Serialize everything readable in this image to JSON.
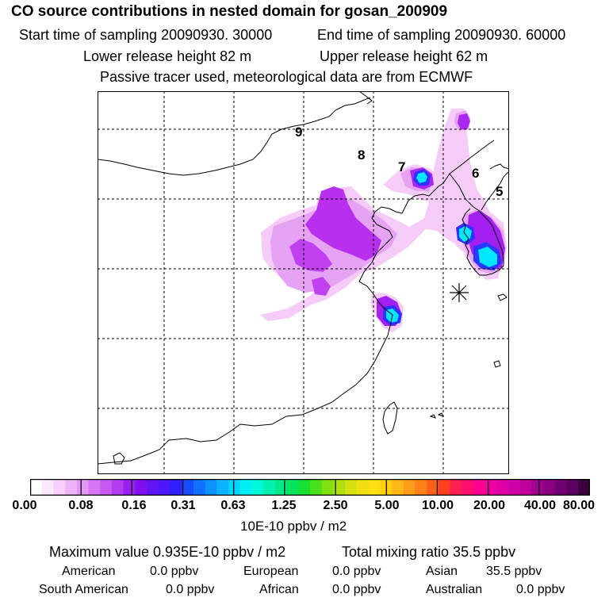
{
  "header": {
    "title": "CO  source contributions in nested domain for gosan_200909",
    "start_time": "Start time of sampling 20090930. 30000",
    "end_time": "End time of sampling 20090930. 60000",
    "lower_height": "Lower release height   82 m",
    "upper_height": "Upper release height   62 m",
    "tracer_note": "Passive tracer used, meteorological data are from ECMWF"
  },
  "map": {
    "trajectory_labels": [
      "9",
      "8",
      "7",
      "6",
      "5"
    ],
    "receptor_marker": "asterisk-icon",
    "colors": {
      "light_pink": "#f3c8f6",
      "pink": "#e8a0f2",
      "violet": "#c050ee",
      "purple": "#a020f0",
      "blue": "#2a60ff",
      "cyan": "#00e8ff"
    }
  },
  "colorbar": {
    "tick_labels": [
      "0.00",
      "0.08",
      "0.16",
      "0.31",
      "0.63",
      "1.25",
      "2.50",
      "5.00",
      "10.00",
      "20.00",
      "40.00",
      "80.00"
    ],
    "colors": [
      "#ffffff",
      "#fbe8fd",
      "#f6d0fb",
      "#eeb4f8",
      "#e498f5",
      "#d577f2",
      "#c65af0",
      "#b23cef",
      "#9a20ef",
      "#8010f0",
      "#6214f6",
      "#4a18fa",
      "#3020ff",
      "#1a4cff",
      "#1070ff",
      "#0c92ff",
      "#08b4ff",
      "#00d4ff",
      "#00eef6",
      "#00f8d8",
      "#00f0b0",
      "#00e888",
      "#00e460",
      "#18e030",
      "#48e018",
      "#80e010",
      "#b0e010",
      "#d6e010",
      "#f0e010",
      "#ffe010",
      "#ffd010",
      "#ffb818",
      "#ff9c18",
      "#ff8018",
      "#ff6018",
      "#ff4020",
      "#ff2050",
      "#ff1070",
      "#ff0090",
      "#f000a0",
      "#e000a8",
      "#d000a8",
      "#c0009c",
      "#a00090",
      "#8a007e",
      "#700070",
      "#5a0060",
      "#3a0040"
    ],
    "unit_label": "10E-10 ppbv / m2"
  },
  "summary": {
    "max_value": "Maximum value  0.935E-10 ppbv / m2",
    "total_mixing": "Total mixing ratio       35.5 ppbv",
    "regions": [
      {
        "name": "American",
        "value": "0.0 ppbv"
      },
      {
        "name": "European",
        "value": "0.0 ppbv"
      },
      {
        "name": "Asian",
        "value": "35.5 ppbv"
      },
      {
        "name": "South American",
        "value": "0.0 ppbv"
      },
      {
        "name": "African",
        "value": "0.0 ppbv"
      },
      {
        "name": "Australian",
        "value": "0.0 ppbv"
      }
    ]
  }
}
